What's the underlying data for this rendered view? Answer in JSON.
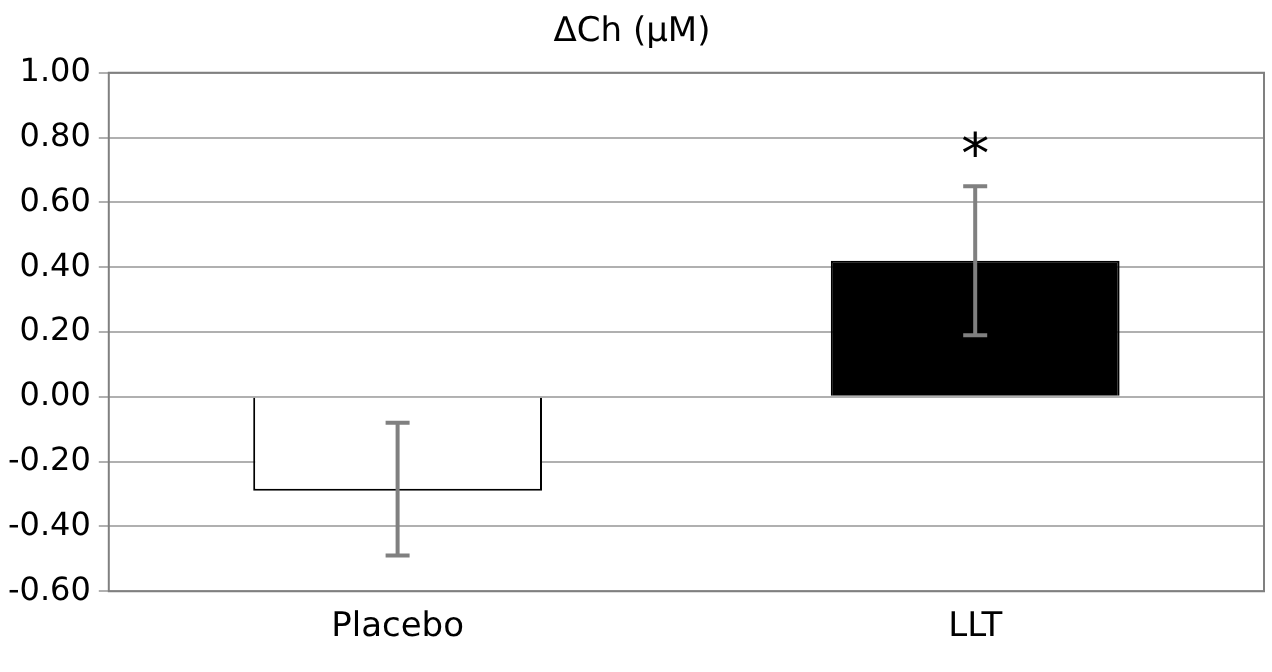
{
  "chart_data": {
    "type": "bar",
    "title": "ΔCh (μM)",
    "categories": [
      "Placebo",
      "LLT"
    ],
    "values": [
      -0.29,
      0.42
    ],
    "colors": [
      "#ffffff",
      "#000000"
    ],
    "errors": [
      [
        -0.49,
        -0.08
      ],
      [
        0.19,
        0.65
      ]
    ],
    "annotations": [
      {
        "text": "*",
        "x": "LLT",
        "y": 0.65
      }
    ],
    "ylim": [
      -0.6,
      1.0
    ],
    "yticks": [
      {
        "value": -0.6,
        "label": "-0.60"
      },
      {
        "value": -0.4,
        "label": "-0.40"
      },
      {
        "value": -0.2,
        "label": "-0.20"
      },
      {
        "value": 0,
        "label": "0.00"
      },
      {
        "value": 0.2,
        "label": "0.20"
      },
      {
        "value": 0.4,
        "label": "0.40"
      },
      {
        "value": 0.6,
        "label": "0.60"
      },
      {
        "value": 0.8,
        "label": "0.80"
      },
      {
        "value": 1.0,
        "label": "1.00"
      }
    ],
    "grid": "y",
    "legend": false
  }
}
